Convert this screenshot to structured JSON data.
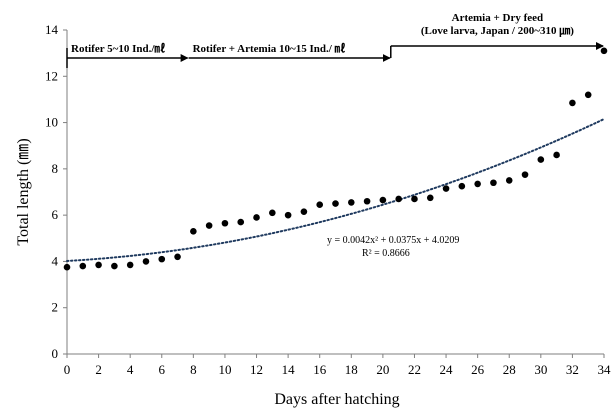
{
  "chart_data": {
    "type": "scatter",
    "xlabel": "Days after hatching",
    "ylabel": "Total length (㎜)",
    "xlim": [
      0,
      34
    ],
    "ylim": [
      0,
      14
    ],
    "xticks": [
      0,
      2,
      4,
      6,
      8,
      10,
      12,
      14,
      16,
      18,
      20,
      22,
      24,
      26,
      28,
      30,
      32,
      34
    ],
    "yticks": [
      0,
      2,
      4,
      6,
      8,
      10,
      12,
      14
    ],
    "grid": false,
    "legend": "none",
    "points": [
      {
        "x": 0,
        "y": 3.75
      },
      {
        "x": 1,
        "y": 3.8
      },
      {
        "x": 2,
        "y": 3.85
      },
      {
        "x": 3,
        "y": 3.8
      },
      {
        "x": 4,
        "y": 3.85
      },
      {
        "x": 5,
        "y": 4.0
      },
      {
        "x": 6,
        "y": 4.1
      },
      {
        "x": 7,
        "y": 4.2
      },
      {
        "x": 8,
        "y": 5.3
      },
      {
        "x": 9,
        "y": 5.55
      },
      {
        "x": 10,
        "y": 5.65
      },
      {
        "x": 11,
        "y": 5.7
      },
      {
        "x": 12,
        "y": 5.9
      },
      {
        "x": 13,
        "y": 6.1
      },
      {
        "x": 14,
        "y": 6.0
      },
      {
        "x": 15,
        "y": 6.15
      },
      {
        "x": 16,
        "y": 6.45
      },
      {
        "x": 17,
        "y": 6.5
      },
      {
        "x": 18,
        "y": 6.55
      },
      {
        "x": 19,
        "y": 6.6
      },
      {
        "x": 20,
        "y": 6.65
      },
      {
        "x": 21,
        "y": 6.7
      },
      {
        "x": 22,
        "y": 6.7
      },
      {
        "x": 23,
        "y": 6.75
      },
      {
        "x": 24,
        "y": 7.15
      },
      {
        "x": 25,
        "y": 7.25
      },
      {
        "x": 26,
        "y": 7.35
      },
      {
        "x": 27,
        "y": 7.4
      },
      {
        "x": 28,
        "y": 7.5
      },
      {
        "x": 29,
        "y": 7.75
      },
      {
        "x": 30,
        "y": 8.4
      },
      {
        "x": 31,
        "y": 8.6
      },
      {
        "x": 32,
        "y": 10.85
      },
      {
        "x": 33,
        "y": 11.2
      },
      {
        "x": 34,
        "y": 13.1
      }
    ],
    "trendline": {
      "type": "polynomial",
      "coefficients": [
        0.0042,
        0.0375,
        4.0209
      ],
      "equation": "y = 0.0042x² + 0.0375x + 4.0209",
      "r_squared": "R² = 0.8666",
      "style": "dotted"
    },
    "annotations": [
      {
        "label": "Rotifer 5~10 Ind./㎖",
        "x_start": 0,
        "x_end": 7.7
      },
      {
        "label": "Rotifer + Artemia 10~15 Ind./ ㎖",
        "x_start": 7.7,
        "x_end": 20.5
      },
      {
        "label_line1": "Artemia + Dry feed",
        "label_line2": "(Love larva, Japan / 200~310 ㎛)",
        "x_start": 20.5,
        "x_end": 34
      }
    ],
    "colors": {
      "points": "#000000",
      "trendline": "#1f3a5f",
      "axis": "#7f7f7f"
    }
  }
}
